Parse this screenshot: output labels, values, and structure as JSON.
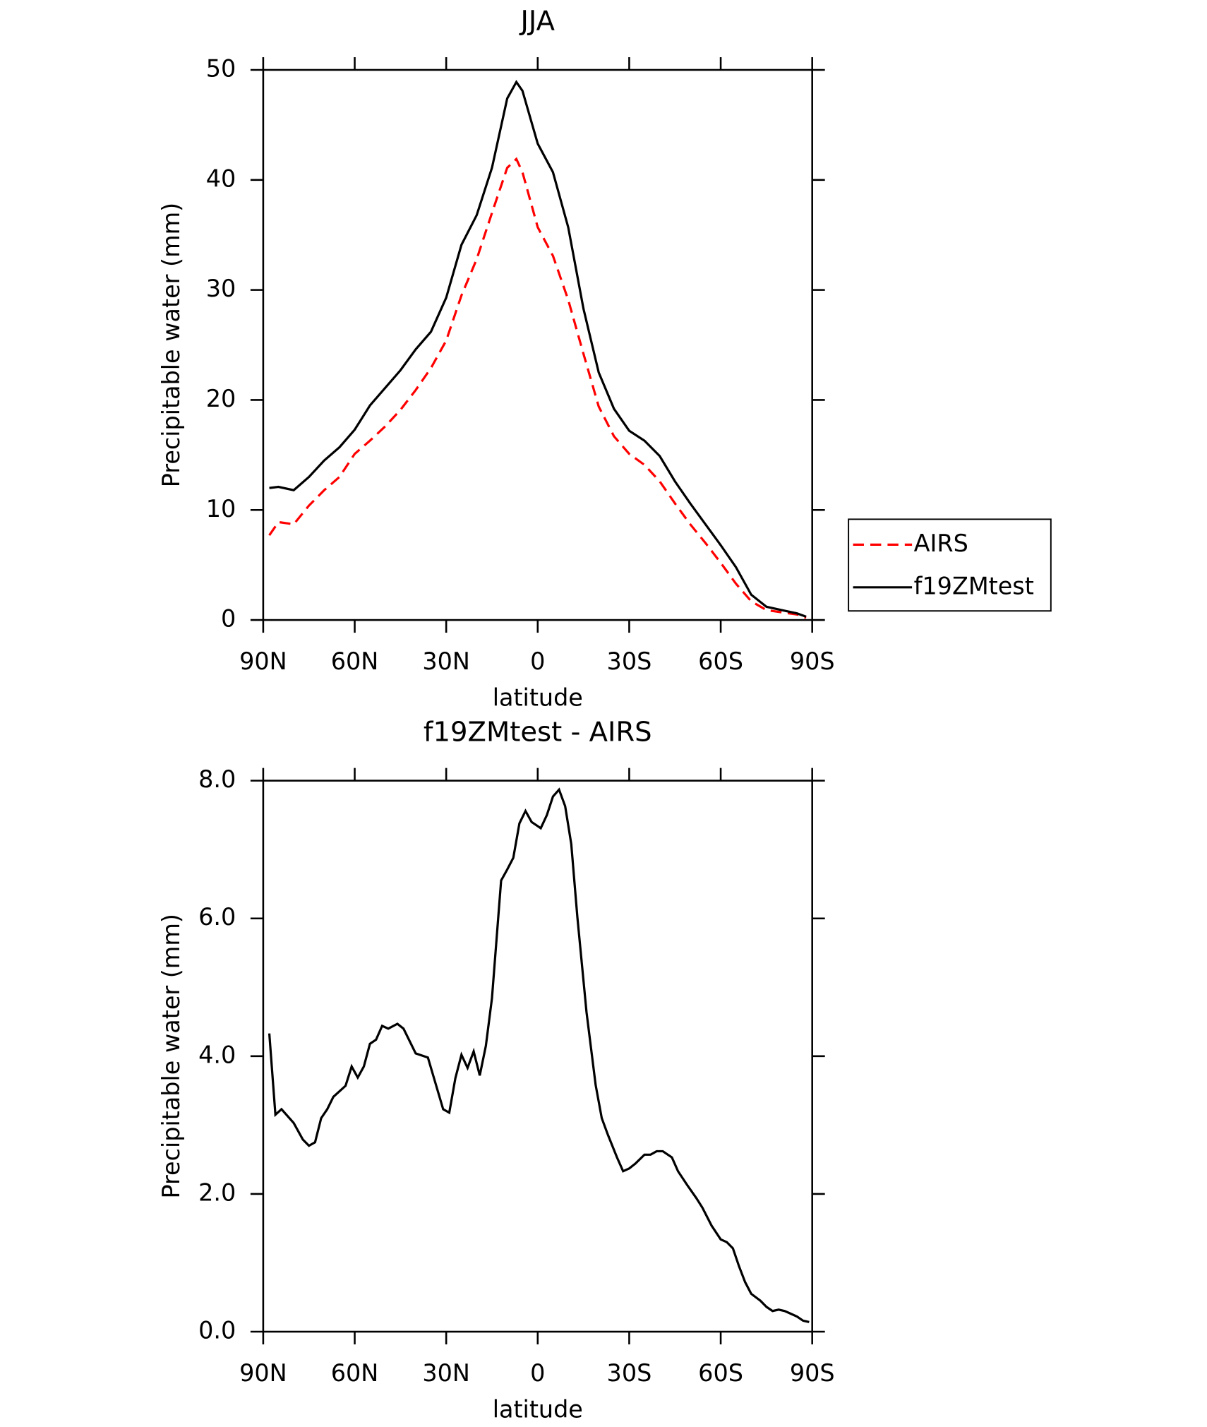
{
  "chart_data": [
    {
      "type": "line",
      "title": "JJA",
      "xlabel": "latitude",
      "ylabel": "Precipitable water (mm)",
      "x": [
        88,
        85,
        80,
        75,
        70,
        65,
        60,
        55,
        50,
        45,
        40,
        35,
        30,
        25,
        20,
        15,
        10,
        7,
        5,
        0,
        -5,
        -10,
        -15,
        -20,
        -25,
        -30,
        -35,
        -40,
        -45,
        -50,
        -55,
        -60,
        -65,
        -70,
        -75,
        -80,
        -85,
        -88
      ],
      "series": [
        {
          "name": "AIRS",
          "color": "#ff0000",
          "linestyle": "dashed",
          "values": [
            7.7,
            8.9,
            8.7,
            10.4,
            11.8,
            13.0,
            15.1,
            16.3,
            17.6,
            19.1,
            20.9,
            22.9,
            25.4,
            29.5,
            32.8,
            37.0,
            41.1,
            41.9,
            40.7,
            35.7,
            33.1,
            29.1,
            24.2,
            19.4,
            16.7,
            15.1,
            14.1,
            12.6,
            10.6,
            8.7,
            7.0,
            5.2,
            3.3,
            1.7,
            0.9,
            0.7,
            0.5,
            0.2
          ]
        },
        {
          "name": "f19ZMtest",
          "color": "#000000",
          "linestyle": "solid",
          "values": [
            12.0,
            12.1,
            11.8,
            13.0,
            14.5,
            15.7,
            17.3,
            19.5,
            21.1,
            22.7,
            24.6,
            26.2,
            29.3,
            34.1,
            36.8,
            41.1,
            47.4,
            48.9,
            48.1,
            43.3,
            40.7,
            35.7,
            28.3,
            22.5,
            19.2,
            17.2,
            16.3,
            14.9,
            12.6,
            10.6,
            8.7,
            6.8,
            4.8,
            2.3,
            1.2,
            0.9,
            0.6,
            0.3
          ]
        }
      ],
      "xlim": [
        90,
        -90
      ],
      "xticks": [
        {
          "value": 90,
          "label": "90N"
        },
        {
          "value": 60,
          "label": "60N"
        },
        {
          "value": 30,
          "label": "30N"
        },
        0,
        {
          "value": -30,
          "label": "30S"
        },
        {
          "value": -60,
          "label": "60S"
        },
        {
          "value": -90,
          "label": "90S"
        }
      ],
      "ylim": [
        0,
        50
      ],
      "yticks": [
        0,
        10,
        20,
        30,
        40,
        50
      ],
      "legend": "right"
    },
    {
      "type": "line",
      "title": "f19ZMtest - AIRS",
      "xlabel": "latitude",
      "ylabel": "Precipitable water (mm)",
      "x": [
        88,
        86,
        84,
        80,
        77,
        75,
        73,
        71,
        69,
        67,
        63,
        61,
        59,
        57,
        55,
        53,
        51,
        49,
        46,
        44,
        40,
        36,
        31,
        29,
        27,
        25,
        23,
        21,
        19,
        17,
        15,
        12,
        10,
        8,
        6,
        4,
        2,
        -1,
        -3,
        -5,
        -7,
        -9,
        -11,
        -13,
        -16,
        -19,
        -21,
        -23,
        -26,
        -28,
        -30,
        -32,
        -35,
        -37,
        -39,
        -41,
        -44,
        -46,
        -49,
        -52,
        -54,
        -57,
        -60,
        -62,
        -64,
        -66,
        -68,
        -70,
        -73,
        -75,
        -77,
        -79,
        -81,
        -83,
        -85,
        -87,
        -89
      ],
      "series": [
        {
          "color": "#000000",
          "linestyle": "solid",
          "values": [
            4.33,
            3.15,
            3.23,
            3.03,
            2.79,
            2.7,
            2.75,
            3.1,
            3.23,
            3.41,
            3.57,
            3.85,
            3.69,
            3.85,
            4.18,
            4.24,
            4.44,
            4.4,
            4.47,
            4.4,
            4.04,
            3.98,
            3.23,
            3.18,
            3.68,
            4.02,
            3.83,
            4.07,
            3.72,
            4.15,
            4.84,
            6.55,
            6.71,
            6.88,
            7.38,
            7.56,
            7.4,
            7.31,
            7.5,
            7.77,
            7.87,
            7.63,
            7.08,
            6.02,
            4.64,
            3.58,
            3.1,
            2.86,
            2.53,
            2.33,
            2.37,
            2.44,
            2.57,
            2.57,
            2.62,
            2.62,
            2.53,
            2.33,
            2.13,
            1.94,
            1.8,
            1.54,
            1.34,
            1.3,
            1.21,
            0.95,
            0.72,
            0.55,
            0.45,
            0.36,
            0.3,
            0.32,
            0.3,
            0.26,
            0.22,
            0.16,
            0.14
          ]
        }
      ],
      "xlim": [
        90,
        -90
      ],
      "xticks": [
        {
          "value": 90,
          "label": "90N"
        },
        {
          "value": 60,
          "label": "60N"
        },
        {
          "value": 30,
          "label": "30N"
        },
        0,
        {
          "value": -30,
          "label": "30S"
        },
        {
          "value": -60,
          "label": "60S"
        },
        {
          "value": -90,
          "label": "90S"
        }
      ],
      "ylim": [
        0,
        8
      ],
      "yticks": [
        {
          "value": 0,
          "label": "0.0"
        },
        {
          "value": 2,
          "label": "2.0"
        },
        {
          "value": 4,
          "label": "4.0"
        },
        {
          "value": 6,
          "label": "6.0"
        },
        {
          "value": 8,
          "label": "8.0"
        }
      ]
    }
  ]
}
